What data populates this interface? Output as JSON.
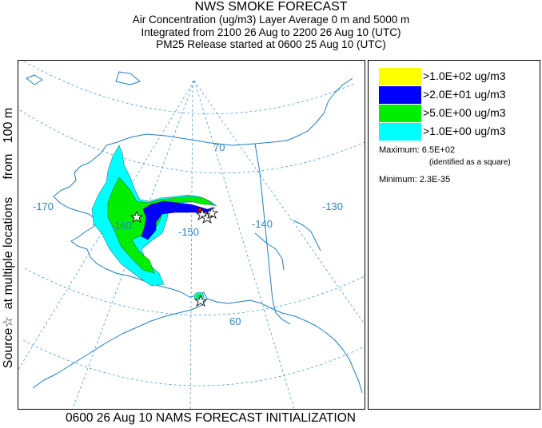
{
  "header": {
    "title": "NWS SMOKE FORECAST",
    "line1": "Air Concentration (ug/m3) Layer Average     0 m and  5000 m",
    "line2": "Integrated from 2100 26 Aug to 2200 26 Aug 10 (UTC)",
    "line3": "PM25 Release started at 0600 25 Aug 10 (UTC)"
  },
  "side_label": "Source☆  at multiple locations     from   100 m",
  "map": {
    "graticule_labels": {
      "lat_70": "70",
      "lat_60": "60",
      "lon_170": "-170",
      "lon_160": "-160",
      "lon_150": "-150",
      "lon_140": "-140",
      "lon_130": "-130"
    },
    "colors": {
      "graticule": "#2f8fd0",
      "coast": "#1f7ec0"
    }
  },
  "legend": {
    "items": [
      {
        "label": ">1.0E+02 ug/m3",
        "color": "#ffff00"
      },
      {
        "label": ">2.0E+01 ug/m3",
        "color": "#0000ff"
      },
      {
        "label": ">5.0E+00 ug/m3",
        "color": "#00ee00"
      },
      {
        "label": ">1.0E+00 ug/m3",
        "color": "#00ffff"
      }
    ],
    "maximum": "Maximum: 6.5E+02",
    "maximum_note": "(identified as a square)",
    "minimum": "Minimum: 2.3E-35"
  },
  "footer": "0600 26 Aug 10 NAMS FORECAST INITIALIZATION"
}
